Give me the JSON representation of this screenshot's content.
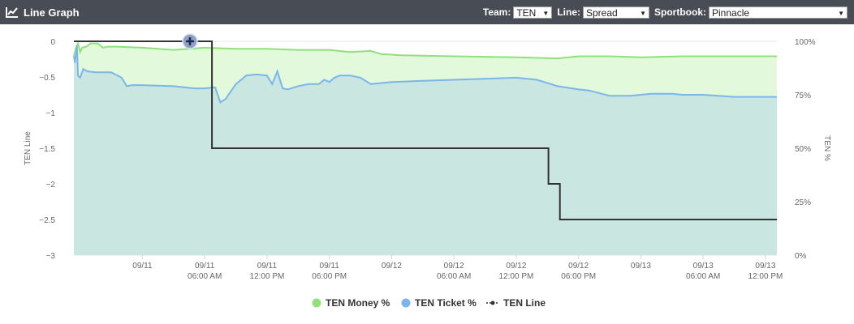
{
  "header": {
    "title": "Line Graph",
    "icon": "line-chart-icon",
    "team_label": "Team:",
    "team_value": "TEN",
    "line_label": "Line:",
    "line_value": "Spread",
    "sportsbook_label": "Sportbook:",
    "sportsbook_value": "Pinnacle"
  },
  "colors": {
    "money": "#90e07c",
    "money_fill": "#e2f9dc",
    "ticket": "#7cb5ec",
    "ticket_fill": "#c9e6e0",
    "line": "#333333",
    "header_bg": "#474c55"
  },
  "chart_data": {
    "type": "line",
    "x_ticks": [
      [
        "09/11",
        ""
      ],
      [
        "09/11",
        "06:00 AM"
      ],
      [
        "09/11",
        "12:00 PM"
      ],
      [
        "09/11",
        "06:00 PM"
      ],
      [
        "09/12",
        ""
      ],
      [
        "09/12",
        "06:00 AM"
      ],
      [
        "09/12",
        "12:00 PM"
      ],
      [
        "09/12",
        "06:00 PM"
      ],
      [
        "09/13",
        ""
      ],
      [
        "09/13",
        "06:00 AM"
      ],
      [
        "09/13",
        "12:00 PM"
      ]
    ],
    "x_range_hours": [
      -6.6,
      61.1
    ],
    "y_left": {
      "label": "TEN Line",
      "ticks": [
        "0",
        "-0.5",
        "-1",
        "-1.5",
        "-2",
        "-2.5",
        "-3"
      ],
      "range": [
        -3,
        0
      ]
    },
    "y_right": {
      "label": "TEN %",
      "ticks": [
        "100%",
        "75%",
        "50%",
        "25%",
        "0%"
      ],
      "range": [
        0,
        100
      ]
    },
    "series": [
      {
        "name": "TEN Money %",
        "points": [
          [
            -6.6,
            93
          ],
          [
            -6.4,
            97
          ],
          [
            -6.2,
            99
          ],
          [
            -6.0,
            95
          ],
          [
            -5.8,
            97
          ],
          [
            -5.4,
            97.5
          ],
          [
            -5.0,
            99
          ],
          [
            -4.3,
            99
          ],
          [
            -3.8,
            97
          ],
          [
            -3.4,
            97.5
          ],
          [
            -2.5,
            97.5
          ],
          [
            0,
            97
          ],
          [
            3,
            96
          ],
          [
            6,
            97
          ],
          [
            9,
            96.5
          ],
          [
            12,
            96.5
          ],
          [
            15,
            96
          ],
          [
            18,
            96
          ],
          [
            20,
            95
          ],
          [
            22,
            95.5
          ],
          [
            23,
            94
          ],
          [
            25,
            93.5
          ],
          [
            30,
            93
          ],
          [
            36,
            92.5
          ],
          [
            40,
            92
          ],
          [
            42,
            93
          ],
          [
            45,
            93
          ],
          [
            48,
            92.5
          ],
          [
            52,
            93
          ],
          [
            55,
            93
          ],
          [
            58,
            93
          ],
          [
            61.1,
            93
          ]
        ]
      },
      {
        "name": "TEN Ticket %",
        "points": [
          [
            -6.6,
            93
          ],
          [
            -6.5,
            90
          ],
          [
            -6.3,
            98
          ],
          [
            -6.2,
            84
          ],
          [
            -6.0,
            83
          ],
          [
            -5.7,
            87
          ],
          [
            -5.3,
            86
          ],
          [
            -4.5,
            85.5
          ],
          [
            -3.0,
            85.5
          ],
          [
            -2.0,
            83
          ],
          [
            -1.5,
            79
          ],
          [
            -1.0,
            79.5
          ],
          [
            0,
            79.5
          ],
          [
            3,
            79
          ],
          [
            5,
            78
          ],
          [
            6,
            78
          ],
          [
            7,
            78.5
          ],
          [
            7.5,
            71.5
          ],
          [
            8,
            73
          ],
          [
            9,
            80
          ],
          [
            10,
            84
          ],
          [
            11,
            84.5
          ],
          [
            12,
            84
          ],
          [
            12.5,
            80
          ],
          [
            13,
            86
          ],
          [
            13.5,
            78
          ],
          [
            14,
            77.5
          ],
          [
            15,
            79
          ],
          [
            16,
            80
          ],
          [
            17,
            80
          ],
          [
            17.5,
            82
          ],
          [
            18,
            81
          ],
          [
            18.5,
            83
          ],
          [
            19,
            84
          ],
          [
            20,
            84
          ],
          [
            21,
            83
          ],
          [
            22,
            80
          ],
          [
            24,
            81
          ],
          [
            27,
            81.5
          ],
          [
            30,
            82
          ],
          [
            33,
            82.5
          ],
          [
            36,
            83
          ],
          [
            38,
            82
          ],
          [
            40,
            79
          ],
          [
            42,
            77.5
          ],
          [
            43,
            77
          ],
          [
            45,
            74.5
          ],
          [
            47,
            74.5
          ],
          [
            49,
            75.5
          ],
          [
            51,
            75.5
          ],
          [
            52,
            75
          ],
          [
            54,
            75
          ],
          [
            57,
            74
          ],
          [
            61.1,
            74
          ]
        ]
      },
      {
        "name": "TEN Line",
        "points": [
          [
            -6.6,
            0
          ],
          [
            6.7,
            0
          ],
          [
            6.7,
            -1.5
          ],
          [
            39.1,
            -1.5
          ],
          [
            39.1,
            -2
          ],
          [
            40.2,
            -2
          ],
          [
            40.2,
            -2.5
          ],
          [
            61.1,
            -2.5
          ]
        ]
      }
    ],
    "legend": {
      "position": "bottom-center",
      "items": [
        "TEN Money %",
        "TEN Ticket %",
        "TEN Line"
      ]
    },
    "marker_label": "+"
  }
}
